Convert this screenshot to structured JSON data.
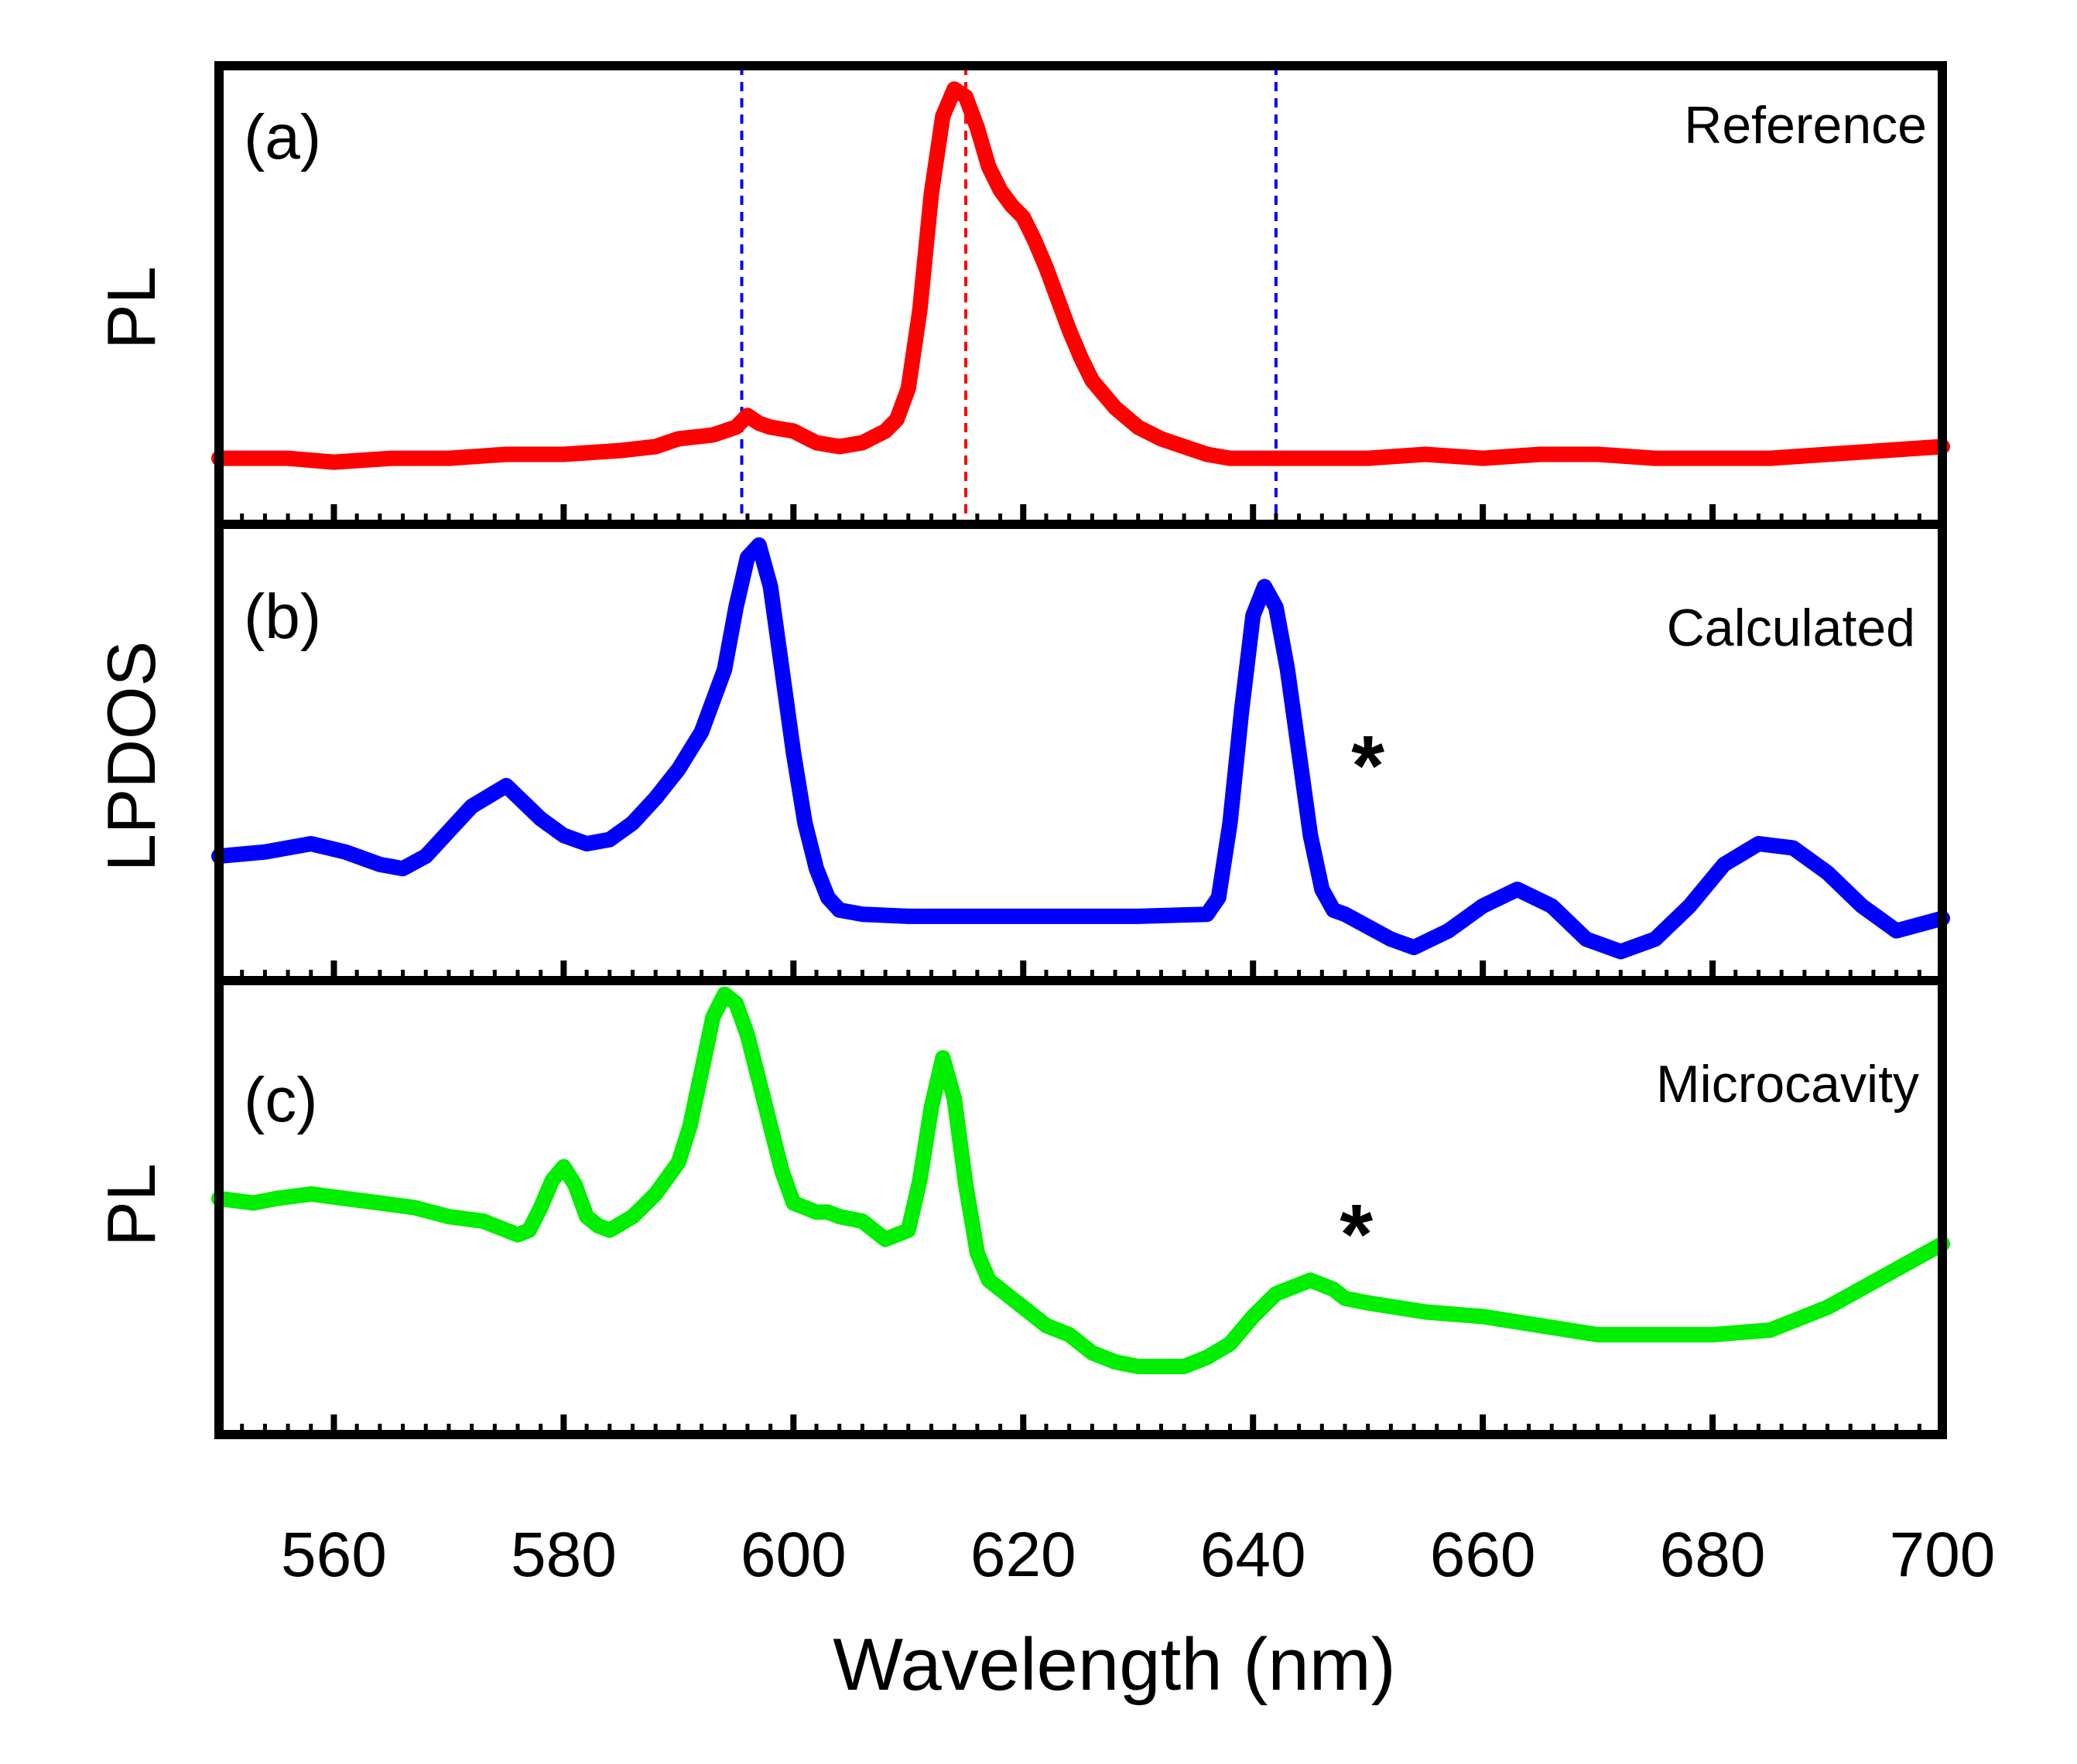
{
  "chart_data": {
    "type": "line",
    "title": "",
    "xlabel": "Wavelength (nm)",
    "xlim": [
      550,
      700
    ],
    "xticks": [
      560,
      580,
      600,
      620,
      640,
      660,
      680,
      700
    ],
    "grid": false,
    "panels": [
      {
        "id": "a",
        "panel_label": "(a)",
        "annotation": "Reference",
        "ylabel": "PL",
        "ylim": [
          0,
          1.18
        ],
        "series": [
          {
            "name": "Reference PL",
            "color": "#ff0000",
            "x": [
              550,
              556,
              560,
              565,
              570,
              575,
              580,
              585,
              588,
              590,
              593,
              595,
              596,
              597,
              598,
              600,
              602,
              604,
              606,
              608,
              609,
              610,
              611,
              612,
              613,
              614,
              615,
              616,
              617,
              618,
              619,
              620,
              621,
              622,
              623,
              624,
              625,
              626,
              628,
              630,
              632,
              634,
              636,
              638,
              640,
              642,
              645,
              650,
              655,
              660,
              665,
              670,
              675,
              680,
              685,
              690,
              695,
              700
            ],
            "y": [
              0.17,
              0.17,
              0.16,
              0.17,
              0.17,
              0.18,
              0.18,
              0.19,
              0.2,
              0.22,
              0.23,
              0.25,
              0.28,
              0.26,
              0.25,
              0.24,
              0.21,
              0.2,
              0.21,
              0.24,
              0.27,
              0.35,
              0.55,
              0.85,
              1.05,
              1.12,
              1.1,
              1.02,
              0.92,
              0.86,
              0.82,
              0.79,
              0.73,
              0.66,
              0.58,
              0.5,
              0.43,
              0.37,
              0.3,
              0.25,
              0.22,
              0.2,
              0.18,
              0.17,
              0.17,
              0.17,
              0.17,
              0.17,
              0.18,
              0.17,
              0.18,
              0.18,
              0.17,
              0.17,
              0.17,
              0.18,
              0.19,
              0.2
            ]
          }
        ],
        "reference_lines": [
          {
            "x": 595.5,
            "color": "#0000ff",
            "style": "dashed"
          },
          {
            "x": 615,
            "color": "#ff0000",
            "style": "dashed"
          },
          {
            "x": 642,
            "color": "#0000ff",
            "style": "dashed"
          }
        ]
      },
      {
        "id": "b",
        "panel_label": "(b)",
        "annotation": "Calculated",
        "ylabel": "LPDOS",
        "ylim": [
          0,
          1.1
        ],
        "marker": {
          "x": 650,
          "y": 0.55,
          "text": "*"
        },
        "series": [
          {
            "name": "Calculated LPDOS",
            "color": "#0000ff",
            "x": [
              550,
              554,
              558,
              561,
              564,
              566,
              568,
              570,
              572,
              575,
              578,
              580,
              582,
              584,
              586,
              588,
              590,
              592,
              594,
              595,
              596,
              597,
              598,
              599,
              600,
              601,
              602,
              603,
              604,
              606,
              610,
              620,
              630,
              636,
              637,
              638,
              639,
              640,
              641,
              642,
              643,
              644,
              645,
              646,
              647,
              648,
              650,
              652,
              654,
              657,
              660,
              663,
              666,
              669,
              672,
              675,
              678,
              681,
              684,
              687,
              690,
              693,
              696,
              700
            ],
            "y": [
              0.3,
              0.31,
              0.33,
              0.31,
              0.28,
              0.27,
              0.3,
              0.36,
              0.42,
              0.47,
              0.39,
              0.35,
              0.33,
              0.34,
              0.38,
              0.44,
              0.51,
              0.6,
              0.75,
              0.9,
              1.02,
              1.05,
              0.95,
              0.75,
              0.55,
              0.38,
              0.27,
              0.2,
              0.17,
              0.16,
              0.155,
              0.155,
              0.155,
              0.16,
              0.2,
              0.38,
              0.65,
              0.88,
              0.95,
              0.9,
              0.75,
              0.55,
              0.35,
              0.22,
              0.17,
              0.16,
              0.13,
              0.1,
              0.08,
              0.12,
              0.18,
              0.22,
              0.18,
              0.1,
              0.07,
              0.1,
              0.18,
              0.28,
              0.33,
              0.32,
              0.26,
              0.18,
              0.12,
              0.15
            ]
          }
        ]
      },
      {
        "id": "c",
        "panel_label": "(c)",
        "annotation": "Microcavity",
        "ylabel": "PL",
        "ylim": [
          0,
          1.0
        ],
        "marker": {
          "x": 649,
          "y": 0.47,
          "text": "*"
        },
        "series": [
          {
            "name": "Microcavity PL",
            "color": "#00ee00",
            "x": [
              550,
              553,
              555,
              558,
              561,
              564,
              567,
              570,
              573,
              576,
              577,
              578,
              579,
              580,
              581,
              582,
              583,
              584,
              586,
              588,
              590,
              591,
              592,
              593,
              594,
              595,
              596,
              597,
              598,
              599,
              600,
              601,
              602,
              603,
              604,
              606,
              608,
              610,
              611,
              612,
              613,
              614,
              615,
              616,
              617,
              618,
              620,
              622,
              624,
              626,
              628,
              630,
              632,
              634,
              636,
              638,
              640,
              642,
              644,
              645,
              646,
              647,
              648,
              650,
              655,
              660,
              665,
              670,
              675,
              680,
              685,
              690,
              695,
              700
            ],
            "y": [
              0.52,
              0.51,
              0.52,
              0.53,
              0.52,
              0.51,
              0.5,
              0.48,
              0.47,
              0.44,
              0.45,
              0.5,
              0.56,
              0.59,
              0.55,
              0.48,
              0.46,
              0.45,
              0.48,
              0.53,
              0.6,
              0.68,
              0.8,
              0.92,
              0.97,
              0.95,
              0.88,
              0.78,
              0.68,
              0.58,
              0.51,
              0.5,
              0.49,
              0.49,
              0.48,
              0.47,
              0.43,
              0.45,
              0.56,
              0.72,
              0.83,
              0.74,
              0.55,
              0.4,
              0.34,
              0.32,
              0.28,
              0.24,
              0.22,
              0.18,
              0.16,
              0.15,
              0.15,
              0.15,
              0.17,
              0.2,
              0.26,
              0.31,
              0.33,
              0.34,
              0.33,
              0.32,
              0.3,
              0.29,
              0.27,
              0.26,
              0.24,
              0.22,
              0.22,
              0.22,
              0.23,
              0.28,
              0.35,
              0.42
            ]
          }
        ]
      }
    ]
  }
}
